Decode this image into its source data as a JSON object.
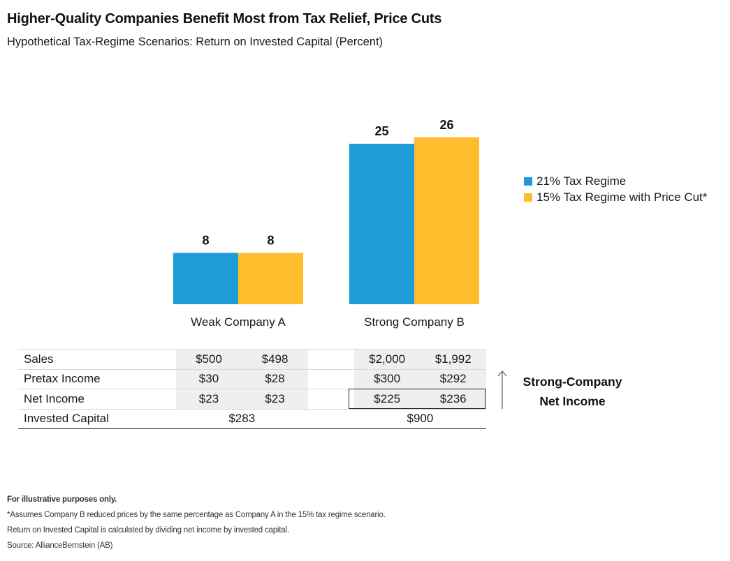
{
  "title": "Higher-Quality Companies Benefit Most from Tax Relief, Price Cuts",
  "subtitle": "Hypothetical Tax-Regime Scenarios: Return on Invested Capital (Percent)",
  "chart_data": {
    "type": "bar",
    "categories": [
      "Weak Company A",
      "Strong Company B"
    ],
    "series": [
      {
        "name": "21% Tax Regime",
        "values": [
          8,
          25
        ],
        "color": "#1e9cd7"
      },
      {
        "name": "15% Tax Regime with Price Cut*",
        "values": [
          8,
          26
        ],
        "color": "#fdbd2c"
      }
    ],
    "ylim": [
      0,
      28
    ],
    "legend_position": "right",
    "grid": false
  },
  "table": {
    "rows": [
      {
        "label": "Sales",
        "a": [
          "$500",
          "$498"
        ],
        "b": [
          "$2,000",
          "$1,992"
        ]
      },
      {
        "label": "Pretax Income",
        "a": [
          "$30",
          "$28"
        ],
        "b": [
          "$300",
          "$292"
        ]
      },
      {
        "label": "Net Income",
        "a": [
          "$23",
          "$23"
        ],
        "b": [
          "$225",
          "$236"
        ]
      },
      {
        "label": "Invested Capital",
        "a_merged": "$283",
        "b_merged": "$900"
      }
    ]
  },
  "note": {
    "line1": "Strong-Company",
    "line2": "Net Income"
  },
  "footnotes": [
    "For illustrative purposes only.",
    "*Assumes Company B reduced prices by the same percentage as Company A in the 15% tax regime scenario.",
    "Return on Invested Capital is calculated by dividing net income by invested capital.",
    "Source: AllianceBernstein (AB)"
  ]
}
